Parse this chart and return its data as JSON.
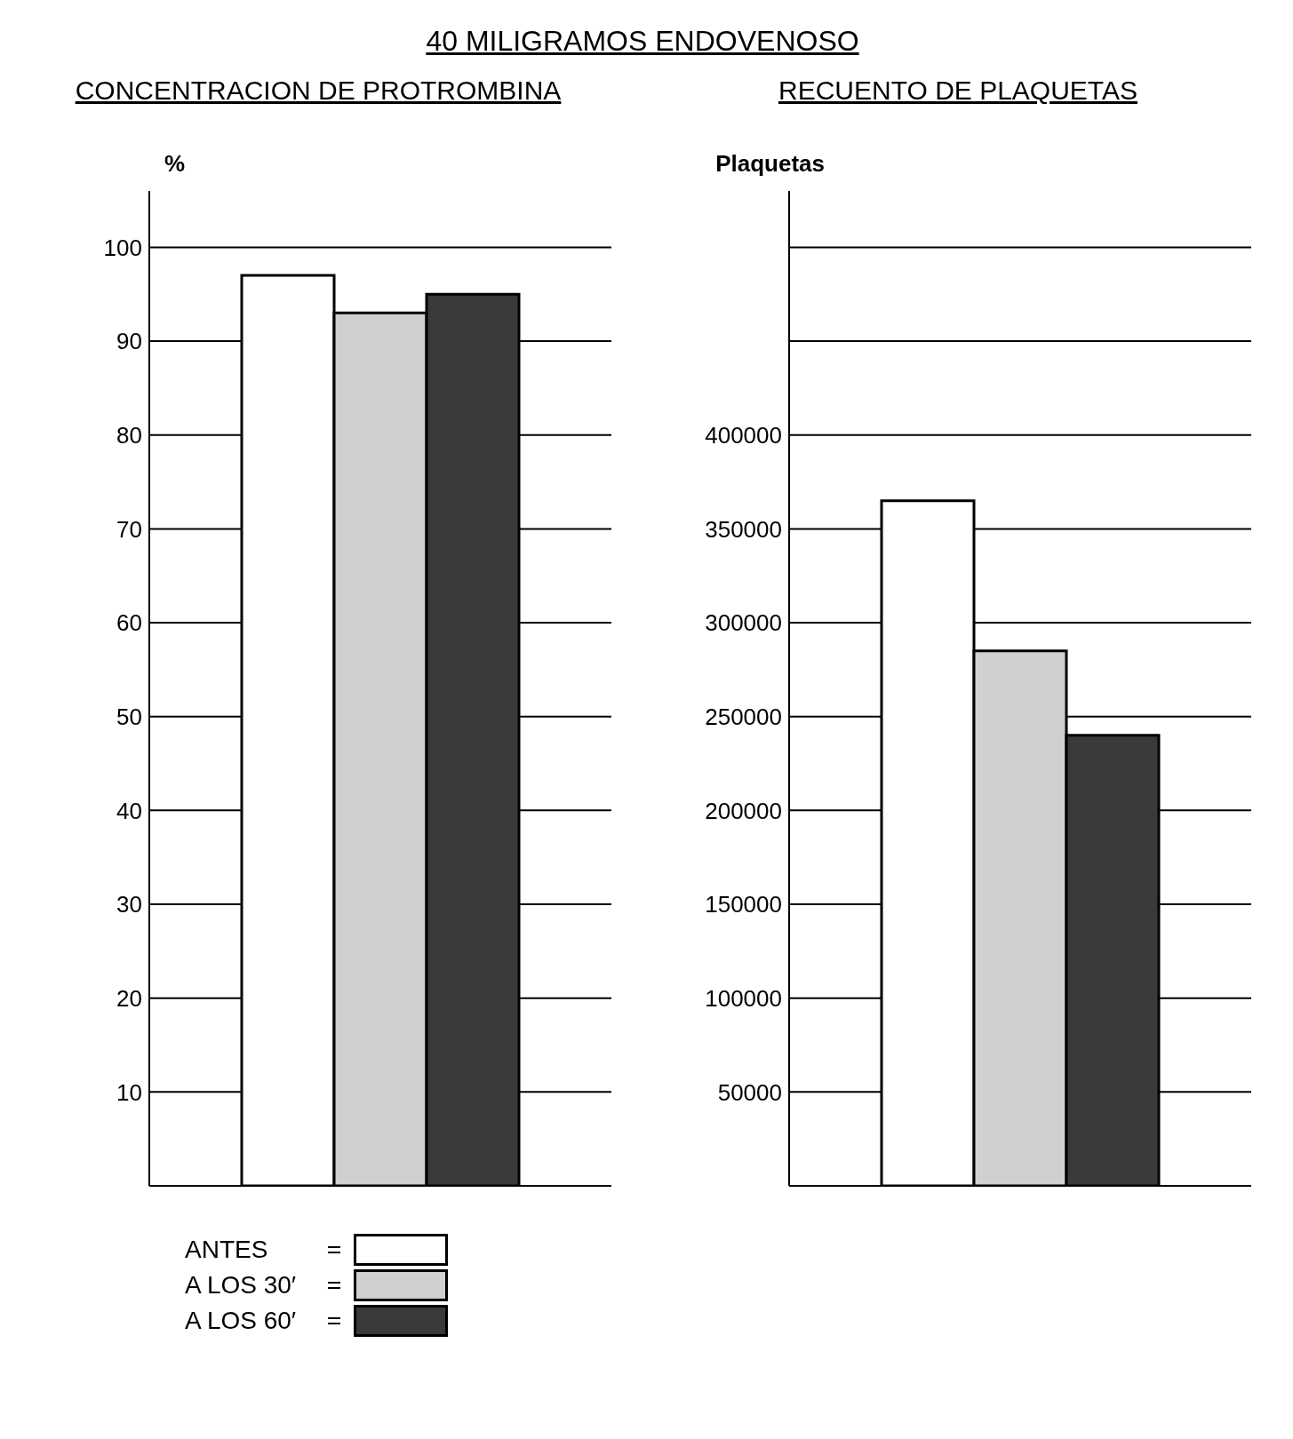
{
  "chart_data": [
    {
      "type": "bar",
      "title": "CONCENTRACION DE PROTROMBINA",
      "ylabel": "%",
      "annotations": [
        "40 MILIGRAMOS ENDOVENOSO"
      ],
      "categories": [
        null
      ],
      "series": [
        {
          "name": "ANTES",
          "color": "#ffffff",
          "values": [
            97
          ]
        },
        {
          "name": "A LOS 30′",
          "color": "#d0d0d0",
          "values": [
            93
          ]
        },
        {
          "name": "A LOS 60′",
          "color": "#3a3a3a",
          "values": [
            95
          ]
        }
      ],
      "ylim": [
        0,
        106
      ],
      "yticks": [
        10,
        20,
        30,
        40,
        50,
        60,
        70,
        80,
        90,
        100
      ],
      "grid": "y",
      "legend": "bottom"
    },
    {
      "type": "bar",
      "title": "RECUENTO DE PLAQUETAS",
      "ylabel": "Plaquetas",
      "categories": [
        null
      ],
      "series": [
        {
          "color": "#ffffff",
          "values": [
            365000
          ]
        },
        {
          "color": "#d0d0d0",
          "values": [
            285000
          ]
        },
        {
          "color": "#3a3a3a",
          "values": [
            240000
          ]
        }
      ],
      "ylim": [
        0,
        530000
      ],
      "yticks": [
        50000,
        100000,
        150000,
        200000,
        250000,
        300000,
        350000,
        400000,
        {
          "value": 450000,
          "label": null
        },
        {
          "value": 500000,
          "label": null
        }
      ],
      "grid": "y"
    }
  ]
}
